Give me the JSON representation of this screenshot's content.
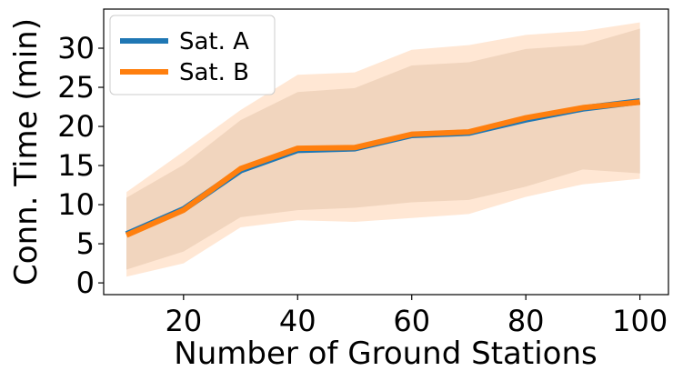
{
  "chart_data": {
    "type": "line",
    "title": "",
    "xlabel": "Number of Ground Stations",
    "ylabel": "Conn. Time (min)",
    "xlim": [
      6,
      105
    ],
    "ylim": [
      -1.5,
      35
    ],
    "x": [
      10,
      20,
      30,
      40,
      50,
      60,
      70,
      80,
      90,
      100
    ],
    "x_ticks": [
      "20",
      "40",
      "60",
      "80",
      "100"
    ],
    "y_ticks": [
      "0",
      "5",
      "10",
      "15",
      "20",
      "25",
      "30"
    ],
    "grid": false,
    "legend_position": "top-left",
    "series": [
      {
        "name": "Sat. A",
        "color": "#1f77b4",
        "values": [
          6.2,
          9.4,
          14.4,
          17.0,
          17.2,
          18.9,
          19.2,
          20.9,
          22.3,
          23.2
        ],
        "band_low": [
          1.7,
          4.0,
          8.4,
          9.3,
          9.6,
          10.3,
          10.6,
          12.3,
          14.5,
          14.0
        ],
        "band_high": [
          10.9,
          15.1,
          20.8,
          24.4,
          24.9,
          27.8,
          28.2,
          29.9,
          30.4,
          32.5
        ],
        "band_color": "#c8b6a6"
      },
      {
        "name": "Sat. B",
        "color": "#ff7f0e",
        "values": [
          6.1,
          9.3,
          14.6,
          17.2,
          17.3,
          19.0,
          19.3,
          21.1,
          22.4,
          23.1
        ],
        "band_low": [
          0.8,
          2.5,
          7.1,
          8.0,
          7.8,
          8.3,
          8.8,
          11.0,
          12.6,
          13.3
        ],
        "band_high": [
          11.6,
          16.8,
          22.1,
          26.6,
          26.9,
          29.8,
          30.4,
          31.7,
          32.2,
          33.3
        ],
        "band_color": "#ffdfc6"
      }
    ]
  }
}
